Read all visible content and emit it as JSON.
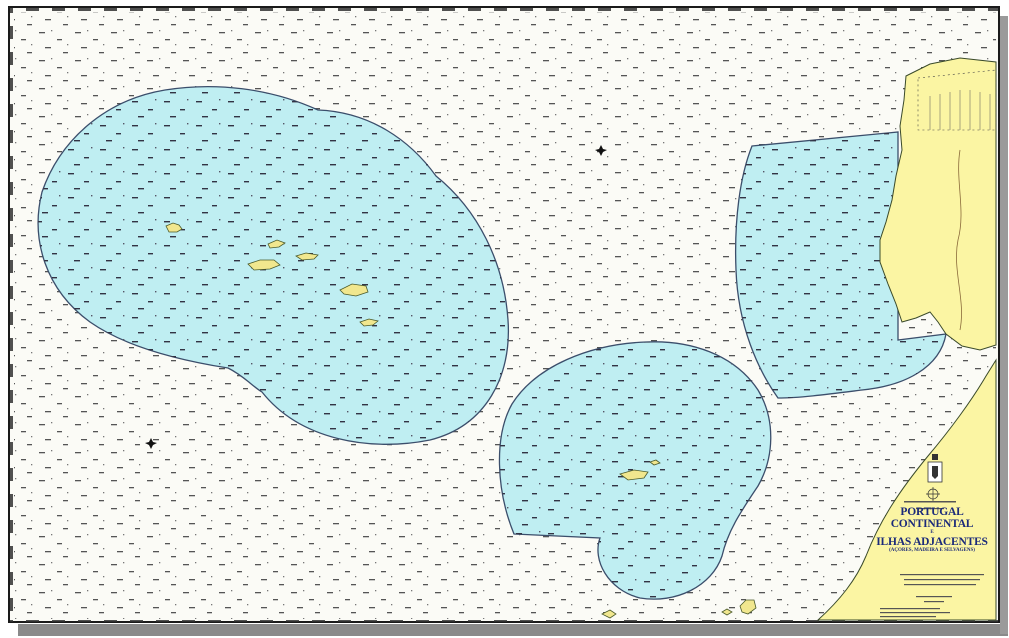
{
  "chart": {
    "title_line1": "PORTUGAL CONTINENTAL",
    "connector": "E",
    "title_line2": "ILHAS ADJACENTES",
    "subtitle": "(AÇORES, MADEIRA E SELVAGENS)"
  },
  "colors": {
    "sea": "#fbfbf6",
    "eez_zone": "#bfeef2",
    "zone_border": "#3b4e6b",
    "land": "#fbf5a3",
    "islands": "#f1e78e",
    "title": "#1b2a7a"
  },
  "icons": [
    "compass-rose-icon",
    "coat-of-arms-icon",
    "star-marker-icon"
  ]
}
